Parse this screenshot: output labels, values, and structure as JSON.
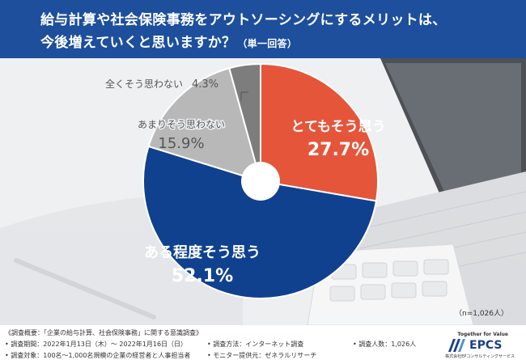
{
  "title": {
    "line1": "給与計算や社会保険事務をアウトソーシングにするメリットは、",
    "line2": "今後増えていくと思いますか？",
    "line2_note": "（単一回答）"
  },
  "colors": {
    "header_bg": "#1d4f9c",
    "slice_1": "#e5553a",
    "slice_2": "#0f418f",
    "slice_3": "#b8b8b8",
    "slice_4": "#7d7d7d"
  },
  "chart_data": {
    "type": "pie",
    "categories": [
      "とてもそう思う",
      "ある程度そう思う",
      "あまりそう思わない",
      "全くそう思わない"
    ],
    "values": [
      27.7,
      52.1,
      15.9,
      4.3
    ],
    "value_labels": [
      "27.7%",
      "52.1%",
      "15.9%",
      "4.3%"
    ],
    "unit": "%",
    "sample_size": "（n=1,026人）"
  },
  "footer": {
    "survey_overview": "《調査概要：「企業の給与計算、社会保険事務」に関する意識調査》",
    "survey_period": "• 調査期間：2022年1月13日（木）～ 2022年1月16日（日）",
    "survey_method": "• 調査方法：インターネット調査",
    "survey_count": "• 調査人数：1,026人",
    "survey_target": "• 調査対象：100名～1,000名規模の企業の経営者と人事担当者",
    "monitor": "• モニター提供元：ゼネラルリサーチ"
  },
  "logo": {
    "tagline": "Together for Value",
    "name": "EPCS",
    "subname": "株式会社EPコンサルティングサービス"
  }
}
